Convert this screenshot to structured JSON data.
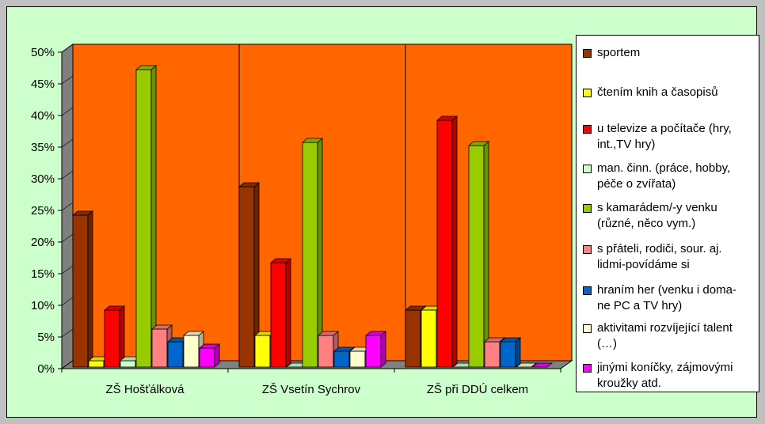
{
  "chart_data": {
    "type": "bar",
    "title": "",
    "xlabel": "",
    "ylabel": "",
    "ylim": [
      0,
      0.5
    ],
    "y_ticks": [
      "0%",
      "5%",
      "10%",
      "15%",
      "20%",
      "25%",
      "30%",
      "35%",
      "40%",
      "45%",
      "50%"
    ],
    "grid": "vertical lines between categories",
    "legend_position": "right",
    "categories": [
      "ZŠ  Hošťálková",
      "ZŠ Vsetín Sychrov",
      "ZŠ při DDÚ celkem"
    ],
    "plot_background": "#ff6600",
    "series": [
      {
        "name": "sportem",
        "color": "#993300",
        "values": [
          0.24,
          0.285,
          0.09
        ]
      },
      {
        "name": "čtením knih a časopisů",
        "color": "#ffff00",
        "values": [
          0.01,
          0.05,
          0.09
        ]
      },
      {
        "name": "u televize a počítače (hry,\nint.,TV hry)",
        "color": "#ff0000",
        "values": [
          0.09,
          0.165,
          0.39
        ]
      },
      {
        "name": "man. činn. (práce, hobby,\npéče o zvířata)",
        "color": "#ccffcc",
        "values": [
          0.01,
          0.0,
          0.0
        ]
      },
      {
        "name": "s kamarádem/-y venku\n(různé, něco vym.)",
        "color": "#99cc00",
        "values": [
          0.47,
          0.355,
          0.35
        ]
      },
      {
        "name": "s přáteli, rodiči, sour. aj.\nlidmi-povídáme si",
        "color": "#ff8080",
        "values": [
          0.06,
          0.05,
          0.04
        ]
      },
      {
        "name": "hraním her (venku i doma-\nne PC a TV hry)",
        "color": "#0066cc",
        "values": [
          0.04,
          0.025,
          0.04
        ]
      },
      {
        "name": "aktivitami rozvíjející talent\n(…)",
        "color": "#ffffcc",
        "values": [
          0.05,
          0.025,
          0.0
        ]
      },
      {
        "name": "jinými koníčky, zájmovými\nkroužky atd.",
        "color": "#ff00ff",
        "values": [
          0.03,
          0.05,
          0.0
        ]
      }
    ]
  }
}
